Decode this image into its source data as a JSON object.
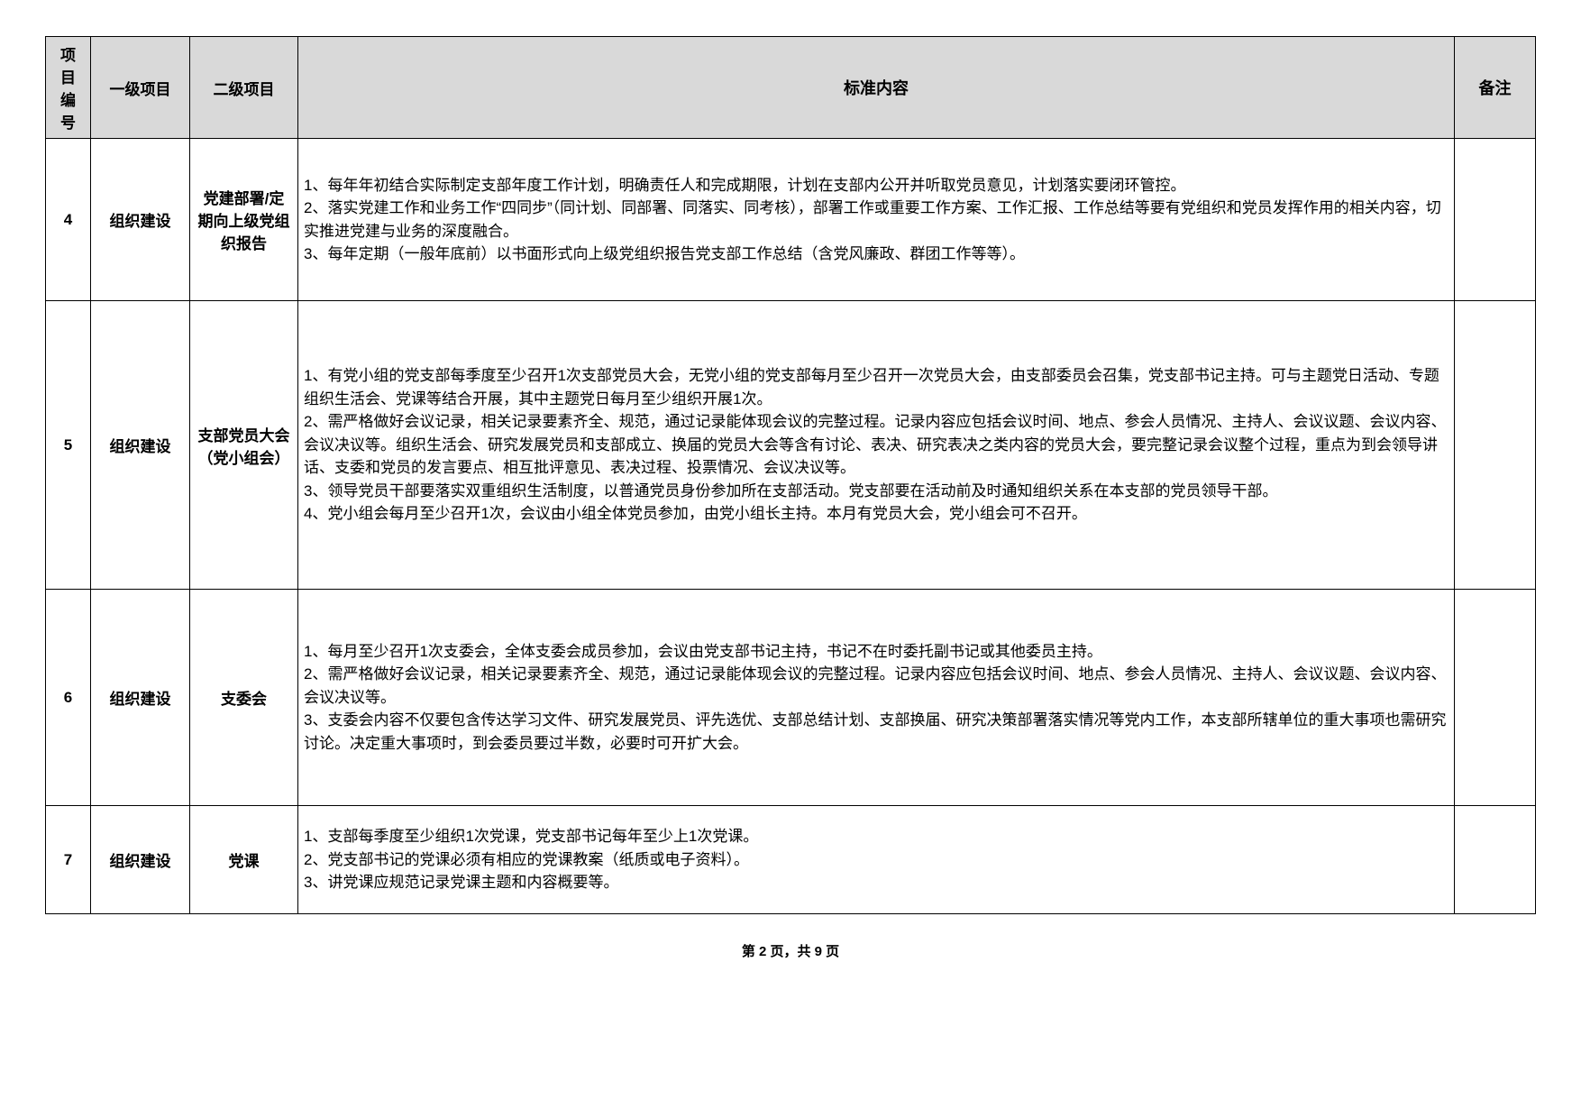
{
  "columns": {
    "num": "项目\n编号",
    "level1": "一级项目",
    "level2": "二级项目",
    "content": "标准内容",
    "remark": "备注"
  },
  "rows": [
    {
      "num": "4",
      "level1": "组织建设",
      "level2": "党建部署/定期向上级党组织报告",
      "content": "1、每年年初结合实际制定支部年度工作计划，明确责任人和完成期限，计划在支部内公开并听取党员意见，计划落实要闭环管控。\n2、落实党建工作和业务工作“四同步”（同计划、同部署、同落实、同考核），部署工作或重要工作方案、工作汇报、工作总结等要有党组织和党员发挥作用的相关内容，切实推进党建与业务的深度融合。\n3、每年定期（一般年底前）以书面形式向上级党组织报告党支部工作总结（含党风廉政、群团工作等等）。"
    },
    {
      "num": "5",
      "level1": "组织建设",
      "level2": "支部党员大会（党小组会）",
      "content": "1、有党小组的党支部每季度至少召开1次支部党员大会，无党小组的党支部每月至少召开一次党员大会，由支部委员会召集，党支部书记主持。可与主题党日活动、专题组织生活会、党课等结合开展，其中主题党日每月至少组织开展1次。\n2、需严格做好会议记录，相关记录要素齐全、规范，通过记录能体现会议的完整过程。记录内容应包括会议时间、地点、参会人员情况、主持人、会议议题、会议内容、会议决议等。组织生活会、研究发展党员和支部成立、换届的党员大会等含有讨论、表决、研究表决之类内容的党员大会，要完整记录会议整个过程，重点为到会领导讲话、支委和党员的发言要点、相互批评意见、表决过程、投票情况、会议决议等。\n3、领导党员干部要落实双重组织生活制度，以普通党员身份参加所在支部活动。党支部要在活动前及时通知组织关系在本支部的党员领导干部。\n4、党小组会每月至少召开1次，会议由小组全体党员参加，由党小组长主持。本月有党员大会，党小组会可不召开。"
    },
    {
      "num": "6",
      "level1": "组织建设",
      "level2": "支委会",
      "content": "1、每月至少召开1次支委会，全体支委会成员参加，会议由党支部书记主持，书记不在时委托副书记或其他委员主持。\n2、需严格做好会议记录，相关记录要素齐全、规范，通过记录能体现会议的完整过程。记录内容应包括会议时间、地点、参会人员情况、主持人、会议议题、会议内容、会议决议等。\n3、支委会内容不仅要包含传达学习文件、研究发展党员、评先选优、支部总结计划、支部换届、研究决策部署落实情况等党内工作，本支部所辖单位的重大事项也需研究讨论。决定重大事项时，到会委员要过半数，必要时可开扩大会。"
    },
    {
      "num": "7",
      "level1": "组织建设",
      "level2": "党课",
      "content": "1、支部每季度至少组织1次党课，党支部书记每年至少上1次党课。\n2、党支部书记的党课必须有相应的党课教案（纸质或电子资料）。\n3、讲党课应规范记录党课主题和内容概要等。"
    }
  ],
  "footer": "第 2 页，共 9 页",
  "row_heights": [
    "180px",
    "320px",
    "240px",
    "120px"
  ]
}
